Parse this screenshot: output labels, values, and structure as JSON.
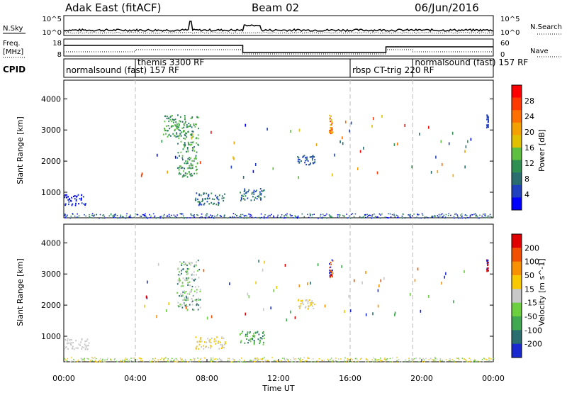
{
  "header": {
    "station": "Adak East (fitACF)",
    "beam": "Beam 02",
    "date": "06/Jun/2016"
  },
  "left_labels": {
    "nsky": "N.Sky",
    "freq": "Freq.",
    "freq_unit": "[MHz]",
    "cpid": "CPID"
  },
  "right_labels": {
    "nsearch": "N.Search",
    "nave": "Nave"
  },
  "noise_axis": {
    "left_ticks": [
      "10^5",
      "10^0"
    ],
    "right_ticks": [
      "10^5",
      "10^0"
    ]
  },
  "freq_axis": {
    "left_ticks": [
      "18",
      "8"
    ],
    "right_ticks": [
      "60",
      "0"
    ]
  },
  "cpid_segments": [
    {
      "label": "normalsound (fast) 157 RF",
      "start": 0,
      "end": 4.0
    },
    {
      "label": "themis 3300 RF",
      "start": 4.0,
      "end": 16.0
    },
    {
      "label": "rbsp CT-trig 220 RF",
      "start": 16.0,
      "end": 19.5
    },
    {
      "label": "normalsound (fast) 157 RF",
      "start": 19.5,
      "end": 24.0
    }
  ],
  "axes": {
    "ylabel": "Slant Range [km]",
    "xlabel": "Time UT",
    "x_ticks": [
      "00:00",
      "04:00",
      "08:00",
      "12:00",
      "16:00",
      "20:00",
      "00:00"
    ],
    "y_ticks": [
      "1000",
      "2000",
      "3000",
      "4000"
    ]
  },
  "power_scale": {
    "label": "Power [dB]",
    "ticks": [
      "4",
      "8",
      "12",
      "16",
      "20",
      "24",
      "28"
    ],
    "colors": [
      "#0000ff",
      "#2040c0",
      "#2a6e70",
      "#2f8f50",
      "#5ec040",
      "#e0c000",
      "#f4a000",
      "#ff7000",
      "#ff3a00",
      "#ff0000"
    ]
  },
  "velocity_scale": {
    "label": "Velocity [m s^-1]",
    "ticks": [
      "200",
      "100",
      "50",
      "15",
      "-15",
      "-50",
      "-100",
      "-200"
    ],
    "colors": [
      "#1a2ad0",
      "#2a6e70",
      "#3fa850",
      "#6ccf40",
      "#c8c8c8",
      "#f8c800",
      "#f89000",
      "#f05000",
      "#e00000"
    ]
  },
  "chart_data": {
    "type": "heatmap",
    "title": "Adak East (fitACF) Beam 02 06/Jun/2016",
    "xlabel": "Time UT",
    "ylabel": "Slant Range [km]",
    "xlim_hours": [
      0,
      24
    ],
    "ylim_km": [
      180,
      4600
    ],
    "grid": "dashed vertical lines at CPID boundaries",
    "panels": [
      {
        "name": "Power [dB]",
        "clusters": [
          {
            "t": [
              0.0,
              1.2
            ],
            "r": [
              600,
              950
            ],
            "c": [
              1,
              0
            ]
          },
          {
            "t": [
              5.5,
              6.8
            ],
            "r": [
              2800,
              3500
            ],
            "c": [
              2,
              3,
              4
            ]
          },
          {
            "t": [
              6.3,
              7.5
            ],
            "r": [
              1500,
              3500
            ],
            "c": [
              2,
              3,
              4
            ]
          },
          {
            "t": [
              7.3,
              9.0
            ],
            "r": [
              600,
              1000
            ],
            "c": [
              1,
              2,
              3
            ]
          },
          {
            "t": [
              9.8,
              11.2
            ],
            "r": [
              750,
              1150
            ],
            "c": [
              2,
              3,
              1
            ]
          },
          {
            "t": [
              14.8,
              15.0
            ],
            "r": [
              2900,
              3500
            ],
            "c": [
              5,
              6,
              8
            ]
          },
          {
            "t": [
              13.0,
              14.0
            ],
            "r": [
              1900,
              2200
            ],
            "c": [
              1,
              2
            ]
          },
          {
            "t": [
              23.6,
              23.7
            ],
            "r": [
              3100,
              3500
            ],
            "c": [
              1
            ]
          }
        ],
        "ground_band_km": [
          180,
          330
        ]
      },
      {
        "name": "Velocity [m s^-1]",
        "clusters": [
          {
            "t": [
              0.0,
              1.4
            ],
            "r": [
              600,
              950
            ],
            "c": [
              4
            ]
          },
          {
            "t": [
              6.3,
              7.6
            ],
            "r": [
              1800,
              3500
            ],
            "c": [
              4,
              3,
              1
            ]
          },
          {
            "t": [
              7.3,
              9.0
            ],
            "r": [
              600,
              1000
            ],
            "c": [
              4,
              5
            ]
          },
          {
            "t": [
              9.8,
              11.2
            ],
            "r": [
              750,
              1200
            ],
            "c": [
              3,
              2,
              1
            ]
          },
          {
            "t": [
              14.8,
              15.0
            ],
            "r": [
              2900,
              3500
            ],
            "c": [
              0,
              7,
              8
            ]
          },
          {
            "t": [
              13.0,
              14.0
            ],
            "r": [
              1900,
              2200
            ],
            "c": [
              4,
              5
            ]
          },
          {
            "t": [
              23.6,
              23.7
            ],
            "r": [
              3100,
              3500
            ],
            "c": [
              8,
              0
            ]
          }
        ],
        "ground_band_km": [
          180,
          330
        ]
      }
    ]
  }
}
